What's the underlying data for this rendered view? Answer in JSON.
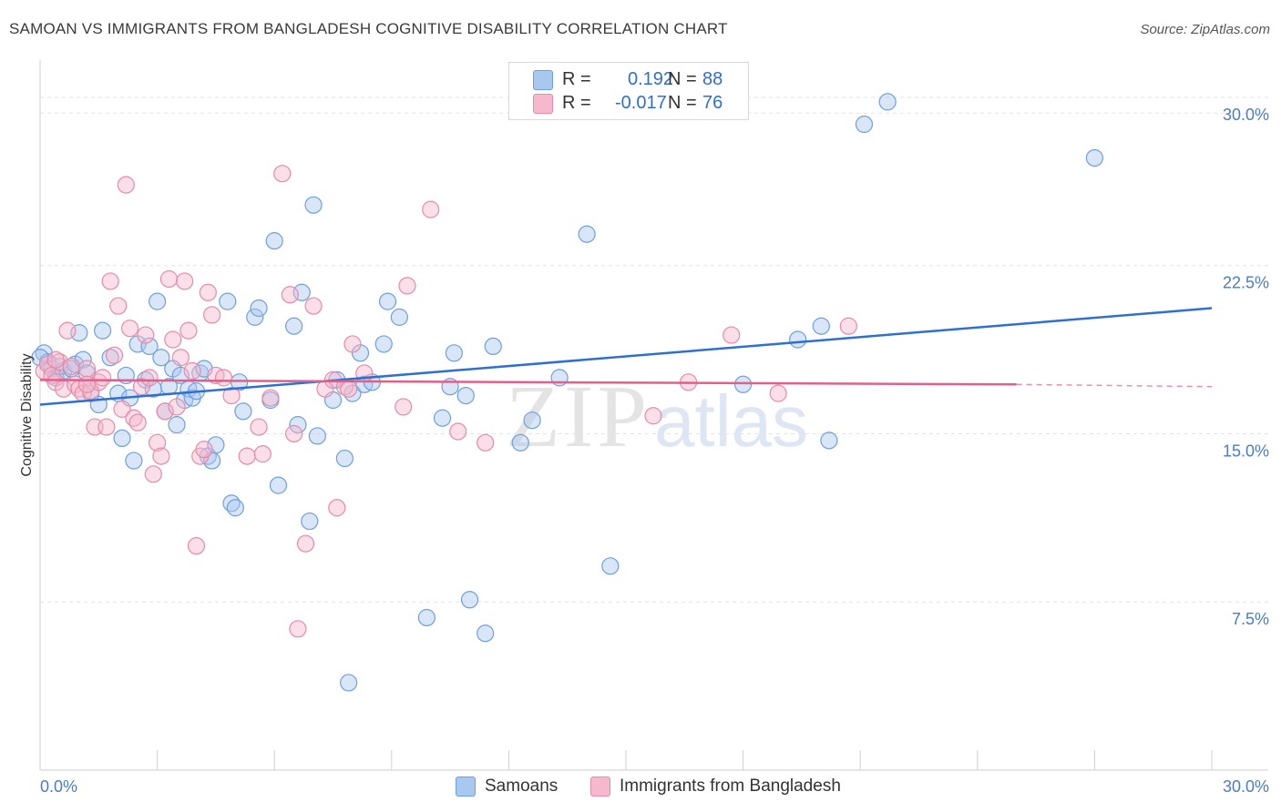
{
  "title": "SAMOAN VS IMMIGRANTS FROM BANGLADESH COGNITIVE DISABILITY CORRELATION CHART",
  "source": "Source: ZipAtlas.com",
  "watermark": {
    "zip": "ZIP",
    "atlas": "atlas"
  },
  "colors": {
    "blue_fill": "#a9c8f0",
    "blue_stroke": "#6f9fdc",
    "blue_line": "#2f6fcf",
    "pink_fill": "#f5b8cc",
    "pink_stroke": "#e88aa8",
    "pink_line": "#e0608a",
    "tick_text": "#4a7cc7",
    "grid": "#e3e3e3"
  },
  "legend": {
    "rows": [
      {
        "r_label": "R =",
        "r_value": "0.192",
        "n_label": "N =",
        "n_value": "88"
      },
      {
        "r_label": "R =",
        "r_value": "-0.017",
        "n_label": "N =",
        "n_value": "76"
      }
    ]
  },
  "bottom_legend": {
    "series1": "Samoans",
    "series2": "Immigrants from Bangladesh"
  },
  "chart_data": {
    "type": "scatter",
    "title": "SAMOAN VS IMMIGRANTS FROM BANGLADESH COGNITIVE DISABILITY CORRELATION CHART",
    "xlabel": "",
    "ylabel": "Cognitive Disability",
    "xlim": [
      0,
      30
    ],
    "ylim": [
      0,
      31.5
    ],
    "x_tick_labels": [
      "0.0%",
      "30.0%"
    ],
    "y_ticks": [
      7.5,
      15.0,
      22.5,
      30.0
    ],
    "y_tick_labels": [
      "7.5%",
      "15.0%",
      "22.5%",
      "30.0%"
    ],
    "grid": "horizontal dashed",
    "legend_position": "top-center",
    "series": [
      {
        "name": "Samoans",
        "trend": {
          "x": [
            0,
            30
          ],
          "y": [
            16.3,
            20.6
          ]
        },
        "points": [
          [
            0.1,
            18.6
          ],
          [
            0.2,
            18.2
          ],
          [
            0.3,
            17.9
          ],
          [
            0.4,
            17.5
          ],
          [
            0.5,
            18.0
          ],
          [
            0.6,
            17.8
          ],
          [
            0.8,
            17.9
          ],
          [
            0.9,
            18.1
          ],
          [
            1.0,
            19.5
          ],
          [
            1.1,
            18.3
          ],
          [
            1.2,
            17.7
          ],
          [
            1.3,
            16.8
          ],
          [
            1.5,
            16.3
          ],
          [
            1.6,
            19.6
          ],
          [
            1.8,
            18.4
          ],
          [
            2.0,
            16.8
          ],
          [
            2.1,
            14.8
          ],
          [
            2.2,
            17.6
          ],
          [
            2.3,
            16.6
          ],
          [
            2.4,
            13.8
          ],
          [
            2.5,
            19.0
          ],
          [
            2.7,
            17.4
          ],
          [
            2.8,
            18.9
          ],
          [
            2.9,
            17.0
          ],
          [
            3.0,
            20.9
          ],
          [
            3.1,
            18.4
          ],
          [
            3.2,
            16.0
          ],
          [
            3.3,
            17.1
          ],
          [
            3.4,
            17.9
          ],
          [
            3.5,
            15.4
          ],
          [
            3.6,
            17.6
          ],
          [
            3.7,
            16.5
          ],
          [
            3.8,
            17.0
          ],
          [
            3.9,
            16.6
          ],
          [
            4.0,
            16.9
          ],
          [
            4.1,
            17.7
          ],
          [
            4.2,
            17.9
          ],
          [
            4.3,
            14.0
          ],
          [
            4.4,
            13.8
          ],
          [
            4.5,
            14.5
          ],
          [
            4.8,
            20.9
          ],
          [
            4.9,
            11.9
          ],
          [
            5.0,
            11.7
          ],
          [
            5.1,
            17.3
          ],
          [
            5.2,
            16.0
          ],
          [
            5.5,
            20.2
          ],
          [
            5.6,
            20.6
          ],
          [
            5.9,
            16.5
          ],
          [
            6.0,
            23.6
          ],
          [
            6.1,
            12.7
          ],
          [
            6.5,
            19.8
          ],
          [
            6.6,
            15.4
          ],
          [
            6.7,
            21.3
          ],
          [
            6.9,
            11.1
          ],
          [
            7.0,
            25.2
          ],
          [
            7.1,
            14.9
          ],
          [
            7.5,
            16.5
          ],
          [
            7.6,
            17.4
          ],
          [
            7.8,
            13.9
          ],
          [
            7.9,
            3.9
          ],
          [
            8.0,
            16.8
          ],
          [
            8.2,
            18.6
          ],
          [
            8.3,
            17.2
          ],
          [
            8.5,
            17.3
          ],
          [
            8.8,
            19.0
          ],
          [
            8.9,
            20.9
          ],
          [
            9.2,
            20.2
          ],
          [
            9.9,
            6.8
          ],
          [
            10.3,
            15.7
          ],
          [
            10.5,
            17.1
          ],
          [
            10.6,
            18.6
          ],
          [
            10.9,
            16.7
          ],
          [
            11.0,
            7.6
          ],
          [
            11.4,
            6.1
          ],
          [
            11.6,
            18.9
          ],
          [
            12.3,
            14.6
          ],
          [
            12.6,
            15.6
          ],
          [
            13.3,
            17.5
          ],
          [
            14.0,
            23.9
          ],
          [
            14.6,
            9.1
          ],
          [
            18.0,
            17.2
          ],
          [
            19.4,
            19.2
          ],
          [
            20.0,
            19.8
          ],
          [
            20.2,
            14.7
          ],
          [
            21.1,
            28.8
          ],
          [
            21.7,
            29.8
          ],
          [
            27.0,
            27.3
          ],
          [
            0.0,
            18.4
          ]
        ]
      },
      {
        "name": "Immigrants from Bangladesh",
        "trend": {
          "x": [
            0,
            25
          ],
          "y": [
            17.4,
            17.2
          ]
        },
        "trend_dashed": {
          "x": [
            25,
            30
          ],
          "y": [
            17.2,
            17.1
          ]
        },
        "points": [
          [
            0.1,
            17.8
          ],
          [
            0.2,
            18.1
          ],
          [
            0.3,
            17.6
          ],
          [
            0.4,
            17.3
          ],
          [
            0.5,
            18.2
          ],
          [
            0.6,
            17.0
          ],
          [
            0.7,
            19.6
          ],
          [
            0.8,
            18.0
          ],
          [
            0.9,
            17.2
          ],
          [
            1.0,
            17.0
          ],
          [
            1.1,
            16.8
          ],
          [
            1.2,
            17.9
          ],
          [
            1.3,
            16.9
          ],
          [
            1.4,
            15.3
          ],
          [
            1.5,
            17.3
          ],
          [
            1.6,
            17.5
          ],
          [
            1.7,
            15.3
          ],
          [
            1.8,
            21.8
          ],
          [
            1.9,
            18.5
          ],
          [
            2.0,
            20.7
          ],
          [
            2.1,
            16.1
          ],
          [
            2.2,
            26.1
          ],
          [
            2.3,
            19.7
          ],
          [
            2.4,
            15.7
          ],
          [
            2.5,
            15.5
          ],
          [
            2.6,
            17.1
          ],
          [
            2.7,
            19.4
          ],
          [
            2.8,
            17.5
          ],
          [
            2.9,
            13.2
          ],
          [
            3.0,
            14.6
          ],
          [
            3.1,
            14.0
          ],
          [
            3.2,
            16.0
          ],
          [
            3.3,
            21.9
          ],
          [
            3.4,
            19.2
          ],
          [
            3.5,
            16.2
          ],
          [
            3.6,
            18.4
          ],
          [
            3.7,
            21.8
          ],
          [
            3.8,
            19.6
          ],
          [
            3.9,
            17.8
          ],
          [
            4.0,
            10.0
          ],
          [
            4.1,
            14.0
          ],
          [
            4.2,
            14.3
          ],
          [
            4.3,
            21.3
          ],
          [
            4.4,
            20.3
          ],
          [
            4.5,
            17.6
          ],
          [
            4.7,
            17.5
          ],
          [
            4.9,
            16.7
          ],
          [
            5.3,
            14.0
          ],
          [
            5.6,
            15.3
          ],
          [
            5.7,
            14.1
          ],
          [
            5.9,
            16.6
          ],
          [
            6.2,
            26.6
          ],
          [
            6.4,
            21.2
          ],
          [
            6.5,
            15.0
          ],
          [
            6.6,
            6.3
          ],
          [
            6.8,
            10.1
          ],
          [
            7.0,
            20.7
          ],
          [
            7.3,
            17.0
          ],
          [
            7.5,
            17.4
          ],
          [
            7.6,
            11.7
          ],
          [
            7.8,
            17.1
          ],
          [
            7.9,
            17.0
          ],
          [
            8.0,
            19.0
          ],
          [
            8.3,
            17.7
          ],
          [
            9.3,
            16.2
          ],
          [
            9.4,
            21.6
          ],
          [
            10.0,
            25.0
          ],
          [
            10.7,
            15.1
          ],
          [
            11.4,
            14.6
          ],
          [
            15.7,
            15.8
          ],
          [
            16.6,
            17.3
          ],
          [
            17.7,
            19.4
          ],
          [
            18.9,
            16.8
          ],
          [
            20.7,
            19.8
          ],
          [
            1.2,
            17.2
          ],
          [
            0.4,
            18.3
          ]
        ]
      }
    ]
  }
}
